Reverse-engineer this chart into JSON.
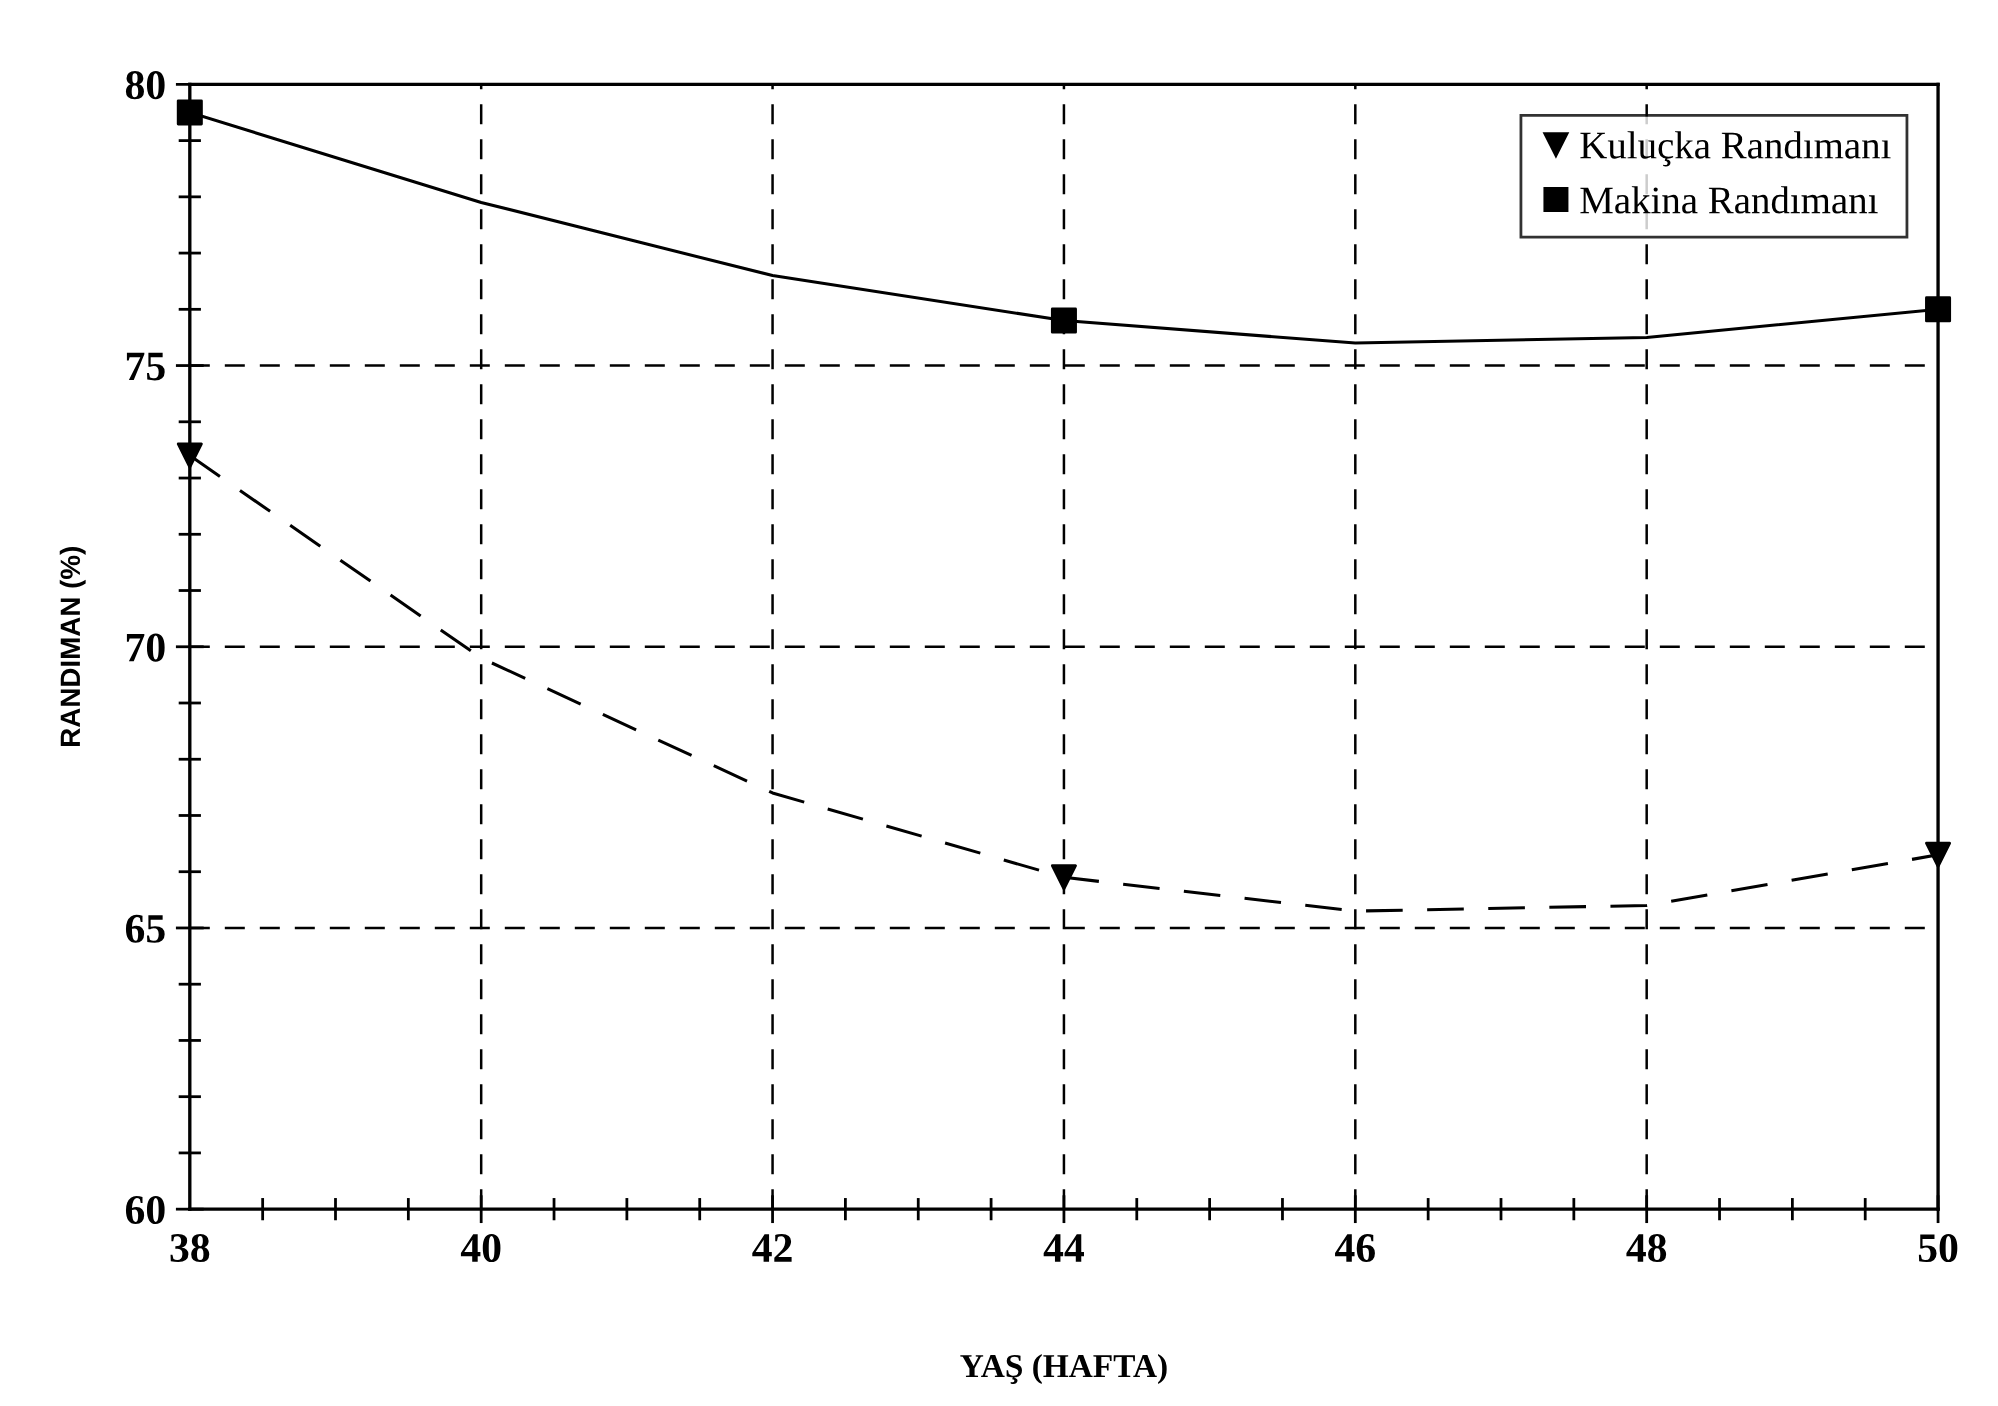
{
  "chart_data": {
    "type": "scatter",
    "xlabel": "YAŞ (HAFTA)",
    "ylabel": "RANDIMAN (%)",
    "xlim": [
      38,
      50
    ],
    "ylim": [
      60,
      80
    ],
    "xticks": [
      38,
      40,
      42,
      44,
      46,
      48,
      50
    ],
    "yticks": [
      60,
      65,
      70,
      75,
      80
    ],
    "grid": true,
    "legend": "top right",
    "series": [
      {
        "name": "Kuluçka Randımanı",
        "marker": "triangle",
        "color": "#000000",
        "x": [
          38,
          44,
          50
        ],
        "values": [
          73.4,
          65.9,
          66.3
        ]
      },
      {
        "name": "Makina Randımanı",
        "marker": "square",
        "color": "#000000",
        "x": [
          38,
          44,
          50
        ],
        "values": [
          79.5,
          75.8,
          76.0
        ]
      },
      {
        "type": "line",
        "line_style": "dashed",
        "marker": "none",
        "color": "#000000",
        "x": [
          38,
          40,
          42,
          44,
          46,
          48,
          50
        ],
        "values": [
          73.4,
          69.8,
          67.4,
          65.9,
          65.3,
          65.4,
          66.3
        ]
      },
      {
        "type": "line",
        "line_style": "solid",
        "marker": "none",
        "color": "#000000",
        "x": [
          38,
          40,
          42,
          44,
          46,
          48,
          50
        ],
        "values": [
          79.5,
          77.9,
          76.6,
          75.8,
          75.4,
          75.5,
          76.0
        ]
      }
    ]
  }
}
